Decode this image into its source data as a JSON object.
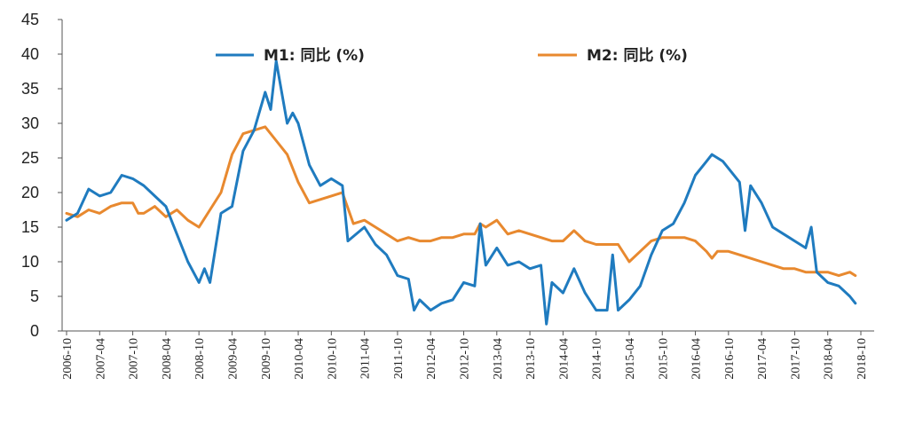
{
  "chart_data": {
    "type": "line",
    "title": "",
    "xlabel": "",
    "ylabel": "",
    "ylim": [
      0,
      45
    ],
    "y_ticks": [
      "0",
      "5",
      "10",
      "15",
      "20",
      "25",
      "30",
      "35",
      "40",
      "45"
    ],
    "x_tick_labels": [
      "2006-10",
      "2007-04",
      "2007-10",
      "2008-04",
      "2008-10",
      "2009-04",
      "2009-10",
      "2010-04",
      "2010-10",
      "2011-04",
      "2011-10",
      "2012-04",
      "2012-10",
      "2013-04",
      "2013-10",
      "2014-04",
      "2014-10",
      "2015-04",
      "2015-10",
      "2016-04",
      "2016-10",
      "2017-04",
      "2017-10",
      "2018-04",
      "2018-10"
    ],
    "grid": false,
    "legend_position": "top",
    "series": [
      {
        "name": "M1: 同比 (%)",
        "color": "#1f7bbf",
        "points": [
          [
            "2006-10",
            16.0
          ],
          [
            "2006-12",
            17.0
          ],
          [
            "2007-02",
            20.5
          ],
          [
            "2007-04",
            19.5
          ],
          [
            "2007-06",
            20.0
          ],
          [
            "2007-08",
            22.5
          ],
          [
            "2007-10",
            22.0
          ],
          [
            "2007-12",
            21.0
          ],
          [
            "2008-02",
            19.5
          ],
          [
            "2008-04",
            18.0
          ],
          [
            "2008-06",
            14.0
          ],
          [
            "2008-08",
            10.0
          ],
          [
            "2008-10",
            7.0
          ],
          [
            "2008-11",
            9.0
          ],
          [
            "2008-12",
            7.0
          ],
          [
            "2009-02",
            17.0
          ],
          [
            "2009-04",
            18.0
          ],
          [
            "2009-06",
            26.0
          ],
          [
            "2009-08",
            29.0
          ],
          [
            "2009-10",
            34.5
          ],
          [
            "2009-11",
            32.0
          ],
          [
            "2009-12",
            39.0
          ],
          [
            "2010-02",
            30.0
          ],
          [
            "2010-03",
            31.5
          ],
          [
            "2010-04",
            30.0
          ],
          [
            "2010-06",
            24.0
          ],
          [
            "2010-08",
            21.0
          ],
          [
            "2010-10",
            22.0
          ],
          [
            "2010-12",
            21.0
          ],
          [
            "2011-01",
            13.0
          ],
          [
            "2011-04",
            15.0
          ],
          [
            "2011-06",
            12.5
          ],
          [
            "2011-08",
            11.0
          ],
          [
            "2011-10",
            8.0
          ],
          [
            "2011-12",
            7.5
          ],
          [
            "2012-01",
            3.0
          ],
          [
            "2012-02",
            4.5
          ],
          [
            "2012-04",
            3.0
          ],
          [
            "2012-06",
            4.0
          ],
          [
            "2012-08",
            4.5
          ],
          [
            "2012-10",
            7.0
          ],
          [
            "2012-12",
            6.5
          ],
          [
            "2013-01",
            15.5
          ],
          [
            "2013-02",
            9.5
          ],
          [
            "2013-04",
            12.0
          ],
          [
            "2013-06",
            9.5
          ],
          [
            "2013-08",
            10.0
          ],
          [
            "2013-10",
            9.0
          ],
          [
            "2013-12",
            9.5
          ],
          [
            "2014-01",
            1.0
          ],
          [
            "2014-02",
            7.0
          ],
          [
            "2014-04",
            5.5
          ],
          [
            "2014-06",
            9.0
          ],
          [
            "2014-08",
            5.5
          ],
          [
            "2014-10",
            3.0
          ],
          [
            "2014-12",
            3.0
          ],
          [
            "2015-01",
            11.0
          ],
          [
            "2015-02",
            3.0
          ],
          [
            "2015-04",
            4.5
          ],
          [
            "2015-06",
            6.5
          ],
          [
            "2015-08",
            11.0
          ],
          [
            "2015-10",
            14.5
          ],
          [
            "2015-12",
            15.5
          ],
          [
            "2016-02",
            18.5
          ],
          [
            "2016-04",
            22.5
          ],
          [
            "2016-06",
            24.5
          ],
          [
            "2016-07",
            25.5
          ],
          [
            "2016-09",
            24.5
          ],
          [
            "2016-10",
            23.5
          ],
          [
            "2016-12",
            21.5
          ],
          [
            "2017-01",
            14.5
          ],
          [
            "2017-02",
            21.0
          ],
          [
            "2017-04",
            18.5
          ],
          [
            "2017-06",
            15.0
          ],
          [
            "2017-08",
            14.0
          ],
          [
            "2017-10",
            13.0
          ],
          [
            "2017-12",
            12.0
          ],
          [
            "2018-01",
            15.0
          ],
          [
            "2018-02",
            8.5
          ],
          [
            "2018-04",
            7.0
          ],
          [
            "2018-06",
            6.5
          ],
          [
            "2018-08",
            5.0
          ],
          [
            "2018-09",
            4.0
          ]
        ]
      },
      {
        "name": "M2: 同比 (%)",
        "color": "#e8892f",
        "points": [
          [
            "2006-10",
            17.0
          ],
          [
            "2006-12",
            16.5
          ],
          [
            "2007-02",
            17.5
          ],
          [
            "2007-04",
            17.0
          ],
          [
            "2007-06",
            18.0
          ],
          [
            "2007-08",
            18.5
          ],
          [
            "2007-10",
            18.5
          ],
          [
            "2007-11",
            17.0
          ],
          [
            "2007-12",
            17.0
          ],
          [
            "2008-02",
            18.0
          ],
          [
            "2008-04",
            16.5
          ],
          [
            "2008-06",
            17.5
          ],
          [
            "2008-08",
            16.0
          ],
          [
            "2008-10",
            15.0
          ],
          [
            "2008-12",
            17.5
          ],
          [
            "2009-02",
            20.0
          ],
          [
            "2009-04",
            25.5
          ],
          [
            "2009-06",
            28.5
          ],
          [
            "2009-08",
            29.0
          ],
          [
            "2009-10",
            29.5
          ],
          [
            "2009-12",
            27.5
          ],
          [
            "2010-02",
            25.5
          ],
          [
            "2010-04",
            21.5
          ],
          [
            "2010-06",
            18.5
          ],
          [
            "2010-08",
            19.0
          ],
          [
            "2010-10",
            19.5
          ],
          [
            "2010-12",
            20.0
          ],
          [
            "2011-02",
            15.5
          ],
          [
            "2011-04",
            16.0
          ],
          [
            "2011-06",
            15.0
          ],
          [
            "2011-08",
            14.0
          ],
          [
            "2011-10",
            13.0
          ],
          [
            "2011-12",
            13.5
          ],
          [
            "2012-02",
            13.0
          ],
          [
            "2012-04",
            13.0
          ],
          [
            "2012-06",
            13.5
          ],
          [
            "2012-08",
            13.5
          ],
          [
            "2012-10",
            14.0
          ],
          [
            "2012-12",
            14.0
          ],
          [
            "2013-01",
            15.5
          ],
          [
            "2013-02",
            15.0
          ],
          [
            "2013-04",
            16.0
          ],
          [
            "2013-06",
            14.0
          ],
          [
            "2013-08",
            14.5
          ],
          [
            "2013-10",
            14.0
          ],
          [
            "2013-12",
            13.5
          ],
          [
            "2014-02",
            13.0
          ],
          [
            "2014-04",
            13.0
          ],
          [
            "2014-06",
            14.5
          ],
          [
            "2014-08",
            13.0
          ],
          [
            "2014-10",
            12.5
          ],
          [
            "2014-12",
            12.5
          ],
          [
            "2015-02",
            12.5
          ],
          [
            "2015-04",
            10.0
          ],
          [
            "2015-06",
            11.5
          ],
          [
            "2015-08",
            13.0
          ],
          [
            "2015-10",
            13.5
          ],
          [
            "2015-12",
            13.5
          ],
          [
            "2016-02",
            13.5
          ],
          [
            "2016-04",
            13.0
          ],
          [
            "2016-06",
            11.5
          ],
          [
            "2016-07",
            10.5
          ],
          [
            "2016-08",
            11.5
          ],
          [
            "2016-10",
            11.5
          ],
          [
            "2016-12",
            11.0
          ],
          [
            "2017-02",
            10.5
          ],
          [
            "2017-04",
            10.0
          ],
          [
            "2017-06",
            9.5
          ],
          [
            "2017-08",
            9.0
          ],
          [
            "2017-10",
            9.0
          ],
          [
            "2017-12",
            8.5
          ],
          [
            "2018-02",
            8.5
          ],
          [
            "2018-04",
            8.5
          ],
          [
            "2018-06",
            8.0
          ],
          [
            "2018-08",
            8.5
          ],
          [
            "2018-09",
            8.0
          ]
        ]
      }
    ]
  }
}
